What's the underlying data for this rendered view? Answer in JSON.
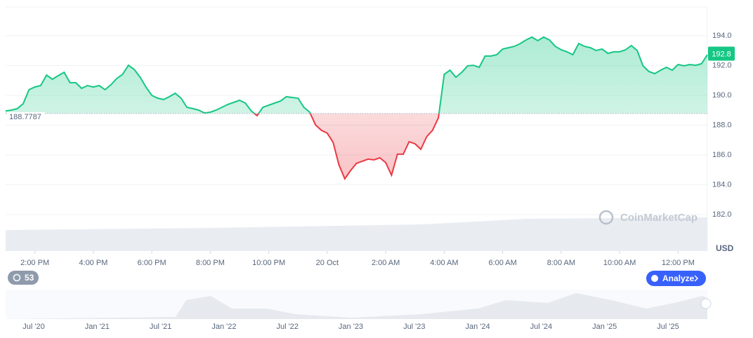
{
  "chart_data": {
    "type": "line",
    "currency": "USD",
    "baseline": 188.7787,
    "last_price": 192.8,
    "up_color": "#16c784",
    "down_color": "#ea3943",
    "grid": true,
    "xlim": [
      13,
      37
    ],
    "xticks": [
      {
        "value": 14,
        "label": "2:00 PM"
      },
      {
        "value": 16,
        "label": "4:00 PM"
      },
      {
        "value": 18,
        "label": "6:00 PM"
      },
      {
        "value": 20,
        "label": "8:00 PM"
      },
      {
        "value": 22,
        "label": "10:00 PM"
      },
      {
        "value": 24,
        "label": "20 Oct"
      },
      {
        "value": 26,
        "label": "2:00 AM"
      },
      {
        "value": 28,
        "label": "4:00 AM"
      },
      {
        "value": 30,
        "label": "6:00 AM"
      },
      {
        "value": 32,
        "label": "8:00 AM"
      },
      {
        "value": 34,
        "label": "10:00 AM"
      },
      {
        "value": 36,
        "label": "12:00 PM"
      }
    ],
    "ylim": [
      179.55,
      195.93
    ],
    "yticks": [
      {
        "value": 182,
        "label": "182.0"
      },
      {
        "value": 184,
        "label": "184.0"
      },
      {
        "value": 186,
        "label": "186.0"
      },
      {
        "value": 188,
        "label": "188.0"
      },
      {
        "value": 190,
        "label": "190.0"
      },
      {
        "value": 192,
        "label": "192.0"
      },
      {
        "value": 194,
        "label": "194.0"
      }
    ],
    "x": [
      13,
      13.2,
      13.4,
      13.6,
      13.8,
      14,
      14.2,
      14.4,
      14.6,
      14.8,
      15,
      15.2,
      15.4,
      15.6,
      15.8,
      16,
      16.2,
      16.4,
      16.6,
      16.8,
      17,
      17.2,
      17.4,
      17.6,
      17.8,
      18,
      18.2,
      18.4,
      18.6,
      18.8,
      19,
      19.2,
      19.4,
      19.6,
      19.8,
      20,
      20.2,
      20.4,
      20.6,
      20.8,
      21,
      21.2,
      21.4,
      21.6,
      21.8,
      22,
      22.2,
      22.4,
      22.6,
      22.8,
      23,
      23.2,
      23.4,
      23.6,
      23.8,
      24,
      24.2,
      24.4,
      24.6,
      24.8,
      25,
      25.2,
      25.4,
      25.6,
      25.8,
      26,
      26.2,
      26.4,
      26.6,
      26.8,
      27,
      27.2,
      27.4,
      27.6,
      27.8,
      28,
      28.2,
      28.4,
      28.6,
      28.8,
      29,
      29.2,
      29.4,
      29.6,
      29.8,
      30,
      30.2,
      30.4,
      30.6,
      30.8,
      31,
      31.2,
      31.4,
      31.6,
      31.8,
      32,
      32.2,
      32.4,
      32.6,
      32.8,
      33,
      33.2,
      33.4,
      33.6,
      33.8,
      34,
      34.2,
      34.4,
      34.6,
      34.8,
      35,
      35.2,
      35.4,
      35.6,
      35.8,
      36,
      36.2,
      36.4,
      36.6,
      36.8,
      37
    ],
    "values": [
      188.96,
      189.01,
      189.11,
      189.44,
      190.38,
      190.56,
      190.66,
      191.36,
      191.08,
      191.32,
      191.55,
      190.85,
      190.85,
      190.47,
      190.66,
      190.56,
      190.66,
      190.38,
      190.71,
      191.13,
      191.41,
      192.02,
      191.74,
      191.22,
      190.56,
      190.0,
      189.81,
      189.72,
      189.91,
      190.14,
      189.81,
      189.2,
      189.11,
      189.01,
      188.82,
      188.87,
      189.01,
      189.2,
      189.39,
      189.53,
      189.67,
      189.48,
      188.96,
      188.64,
      189.2,
      189.34,
      189.48,
      189.62,
      189.91,
      189.86,
      189.81,
      189.2,
      188.87,
      188.02,
      187.65,
      187.46,
      186.85,
      185.34,
      184.4,
      184.96,
      185.44,
      185.58,
      185.72,
      185.67,
      185.81,
      185.48,
      184.64,
      186.05,
      186.05,
      186.89,
      186.75,
      186.38,
      187.22,
      187.65,
      188.49,
      191.41,
      191.69,
      191.22,
      191.55,
      191.98,
      192.02,
      191.88,
      192.64,
      192.64,
      192.73,
      193.11,
      193.2,
      193.29,
      193.48,
      193.72,
      193.91,
      193.67,
      193.91,
      193.72,
      193.29,
      193.06,
      192.92,
      192.73,
      193.48,
      193.29,
      193.2,
      193.01,
      193.11,
      192.82,
      192.92,
      192.92,
      193.06,
      193.34,
      193.01,
      191.98,
      191.6,
      191.46,
      191.69,
      191.88,
      191.69,
      192.07,
      191.98,
      192.07,
      192.02,
      192.12,
      192.73
    ]
  },
  "watermark": "CoinMarketCap",
  "badge_count": 53,
  "analyze_button": "Analyze",
  "navigator": {
    "labels": [
      "Jul '20",
      "Jan '21",
      "Jul '21",
      "Jan '22",
      "Jul '22",
      "Jan '23",
      "Jul '23",
      "Jan '24",
      "Jul '24",
      "Jan '25",
      "Jul '25"
    ]
  }
}
